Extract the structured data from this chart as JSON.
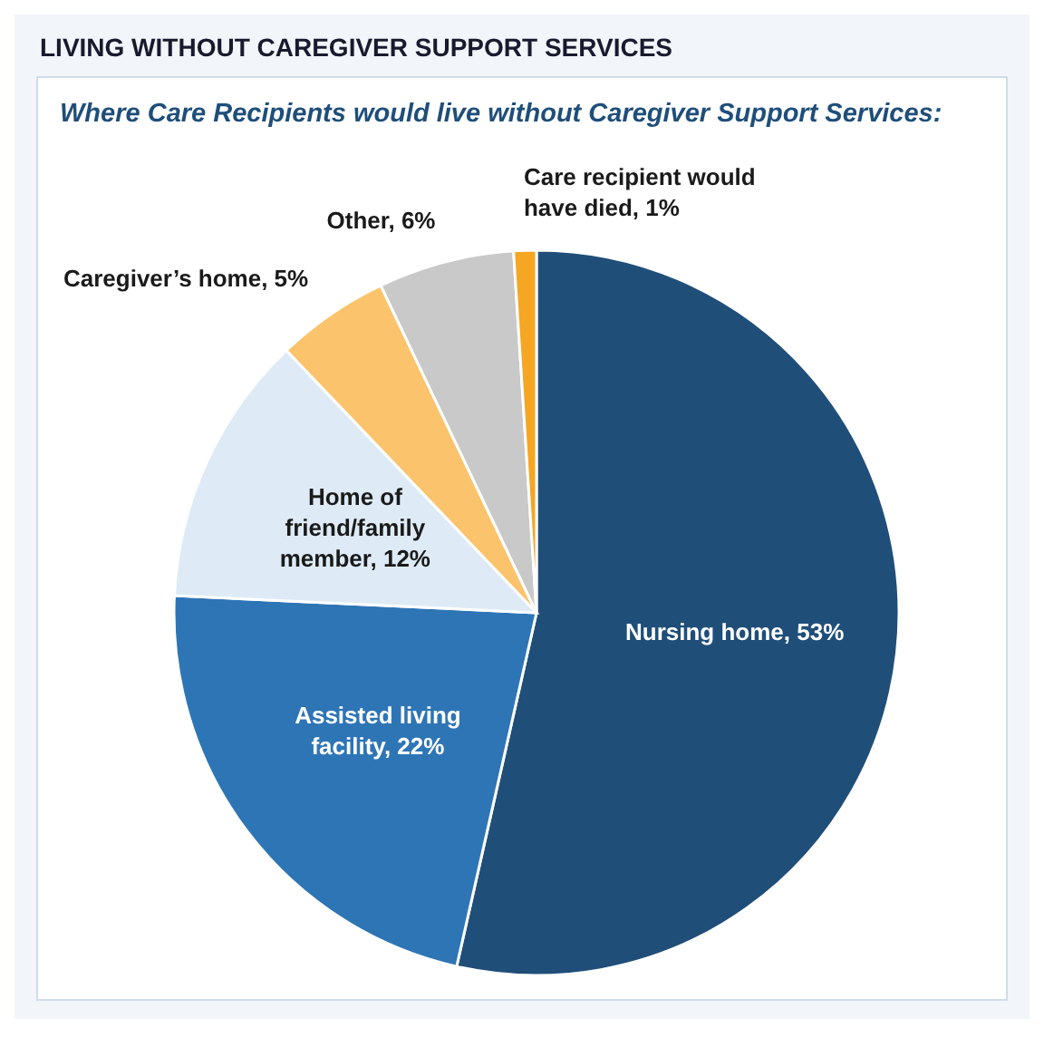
{
  "chart_data": {
    "type": "pie",
    "title": "LIVING WITHOUT CAREGIVER SUPPORT SERVICES",
    "subtitle": "Where Care Recipients would live without Caregiver Support Services:",
    "categories": [
      "Nursing home",
      "Assisted living facility",
      "Home of friend/family member",
      "Caregiver’s home",
      "Other",
      "Care recipient would have died"
    ],
    "values": [
      53,
      22,
      12,
      5,
      6,
      1
    ],
    "value_labels": [
      "53%",
      "22%",
      "12%",
      "5%",
      "6%",
      "1%"
    ],
    "colors": [
      "#1f4e79",
      "#2e75b6",
      "#deebf7",
      "#fbc36b",
      "#c9c9c9",
      "#f5a623"
    ],
    "legend": false
  }
}
